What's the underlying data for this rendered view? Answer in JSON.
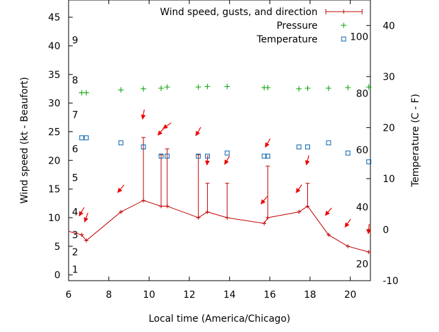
{
  "chart_data": {
    "type": "line",
    "xlabel": "Local time (America/Chicago)",
    "ylabel": "Wind speed (kt - Beaufort)",
    "y2label": "Temperature (C - F)",
    "xlim": [
      6,
      21
    ],
    "ylim": [
      -1,
      48
    ],
    "y2lim": [
      -10,
      45
    ],
    "x_ticks": [
      6,
      8,
      10,
      12,
      14,
      16,
      18,
      20
    ],
    "y_ticks": [
      0,
      5,
      10,
      15,
      20,
      25,
      30,
      35,
      40,
      45
    ],
    "y2_ticks": [
      -10,
      0,
      10,
      20,
      30,
      40
    ],
    "beaufort_labels": [
      {
        "label": "1",
        "y": 1
      },
      {
        "label": "2",
        "y": 4
      },
      {
        "label": "3",
        "y": 7
      },
      {
        "label": "4",
        "y": 11
      },
      {
        "label": "5",
        "y": 17
      },
      {
        "label": "6",
        "y": 22
      },
      {
        "label": "7",
        "y": 28
      },
      {
        "label": "8",
        "y": 34
      },
      {
        "label": "9",
        "y": 41
      }
    ],
    "fahrenheit_labels": [
      {
        "label": "20",
        "c": -6.7
      },
      {
        "label": "40",
        "c": 4.4
      },
      {
        "label": "60",
        "c": 15.6
      },
      {
        "label": "80",
        "c": 26.7
      },
      {
        "label": "100",
        "c": 37.8
      }
    ],
    "legend": [
      {
        "label": "Wind speed, gusts, and direction",
        "color": "#c00000",
        "marker": "errorbar"
      },
      {
        "label": "Pressure",
        "color": "#00a000",
        "marker": "plus"
      },
      {
        "label": "Temperature",
        "color": "#0060ad",
        "marker": "square"
      }
    ],
    "legend_position": "top-right",
    "wind": [
      {
        "x": 6.65,
        "speed": 7,
        "gust": 7,
        "dir": 30
      },
      {
        "x": 6.88,
        "speed": 6,
        "gust": 6,
        "dir": 20
      },
      {
        "x": 8.6,
        "speed": 11,
        "gust": 11,
        "dir": 40
      },
      {
        "x": 9.72,
        "speed": 13,
        "gust": 24,
        "dir": 10
      },
      {
        "x": 10.6,
        "speed": 12,
        "gust": 21,
        "dir": 40
      },
      {
        "x": 10.9,
        "speed": 12,
        "gust": 22,
        "dir": 55
      },
      {
        "x": 12.45,
        "speed": 10,
        "gust": 21,
        "dir": 30
      },
      {
        "x": 12.9,
        "speed": 11,
        "gust": 16,
        "dir": 5
      },
      {
        "x": 13.88,
        "speed": 10,
        "gust": 16,
        "dir": 30
      },
      {
        "x": 15.72,
        "speed": 9,
        "gust": 9,
        "dir": 40
      },
      {
        "x": 15.9,
        "speed": 10,
        "gust": 19,
        "dir": 30
      },
      {
        "x": 17.45,
        "speed": 11,
        "gust": 11,
        "dir": 35
      },
      {
        "x": 17.88,
        "speed": 12,
        "gust": 16,
        "dir": 15
      },
      {
        "x": 18.92,
        "speed": 7,
        "gust": 7,
        "dir": 40
      },
      {
        "x": 19.88,
        "speed": 5,
        "gust": 5,
        "dir": 35
      },
      {
        "x": 20.92,
        "speed": 4,
        "gust": 4,
        "dir": 5
      }
    ],
    "pressure": [
      {
        "x": 6.65,
        "y": 31.8
      },
      {
        "x": 6.88,
        "y": 31.8
      },
      {
        "x": 8.6,
        "y": 32.3
      },
      {
        "x": 9.72,
        "y": 32.5
      },
      {
        "x": 10.6,
        "y": 32.6
      },
      {
        "x": 10.9,
        "y": 32.8
      },
      {
        "x": 12.45,
        "y": 32.8
      },
      {
        "x": 12.9,
        "y": 32.9
      },
      {
        "x": 13.88,
        "y": 32.9
      },
      {
        "x": 15.72,
        "y": 32.7
      },
      {
        "x": 15.9,
        "y": 32.7
      },
      {
        "x": 17.45,
        "y": 32.5
      },
      {
        "x": 17.88,
        "y": 32.6
      },
      {
        "x": 18.92,
        "y": 32.6
      },
      {
        "x": 19.88,
        "y": 32.7
      },
      {
        "x": 20.92,
        "y": 32.8
      }
    ],
    "temperature": [
      {
        "x": 6.65,
        "c": 18
      },
      {
        "x": 6.88,
        "c": 18
      },
      {
        "x": 8.6,
        "c": 17
      },
      {
        "x": 9.72,
        "c": 16.2
      },
      {
        "x": 10.6,
        "c": 14.4
      },
      {
        "x": 10.9,
        "c": 14.4
      },
      {
        "x": 12.45,
        "c": 14.4
      },
      {
        "x": 12.9,
        "c": 14.4
      },
      {
        "x": 13.88,
        "c": 15
      },
      {
        "x": 15.72,
        "c": 14.4
      },
      {
        "x": 15.9,
        "c": 14.4
      },
      {
        "x": 17.45,
        "c": 16.2
      },
      {
        "x": 17.88,
        "c": 16.2
      },
      {
        "x": 18.92,
        "c": 17
      },
      {
        "x": 19.88,
        "c": 15
      },
      {
        "x": 20.92,
        "c": 13.3
      }
    ],
    "colors": {
      "wind": "#c00000",
      "arrow": "#ee0000",
      "pressure": "#00a000",
      "temperature": "#0060ad"
    }
  }
}
